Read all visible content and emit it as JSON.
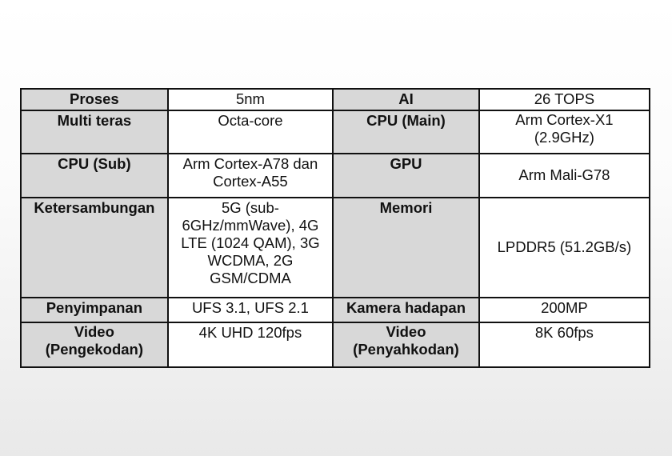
{
  "rows": [
    [
      {
        "label": "Proses",
        "value": "5nm"
      },
      {
        "label": "AI",
        "value": "26 TOPS"
      }
    ],
    [
      {
        "label": "Multi teras",
        "value": "Octa-core"
      },
      {
        "label": "CPU (Main)",
        "value": "Arm Cortex-X1 (2.9GHz)"
      }
    ],
    [
      {
        "label": "CPU (Sub)",
        "value": "Arm Cortex-A78 dan Cortex-A55"
      },
      {
        "label": "GPU",
        "value": "Arm Mali-G78"
      }
    ],
    [
      {
        "label": "Ketersambungan",
        "value": "5G (sub-6GHz/mmWave), 4G LTE (1024 QAM), 3G WCDMA, 2G GSM/CDMA"
      },
      {
        "label": "Memori",
        "value": "LPDDR5 (51.2GB/s)"
      }
    ],
    [
      {
        "label": "Penyimpanan",
        "value": "UFS 3.1, UFS 2.1"
      },
      {
        "label": "Kamera hadapan",
        "value": "200MP"
      }
    ],
    [
      {
        "label": "Video (Pengekodan)",
        "value": "4K UHD 120fps"
      },
      {
        "label": "Video (Penyahkodan)",
        "value": "8K 60fps"
      }
    ]
  ]
}
